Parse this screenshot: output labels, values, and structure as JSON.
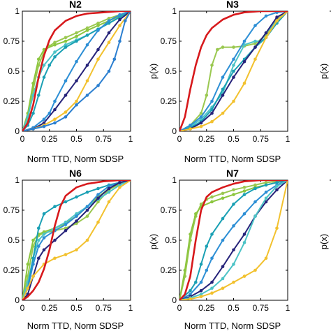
{
  "chart_data": [
    {
      "type": "line",
      "title": "N2",
      "xlabel": "Norm TTD, Norm SDSP",
      "ylabel": "",
      "xlim": [
        0,
        1
      ],
      "ylim": [
        0,
        1
      ],
      "xticks": [
        "0",
        "0.25",
        "0.5",
        "0.75",
        "1"
      ],
      "yticks": [
        "0",
        "0.25",
        "0.5",
        "0.75",
        "1"
      ],
      "grid": false,
      "series": [
        {
          "color": "#d7191c",
          "markers": false,
          "x": [
            0,
            0.05,
            0.1,
            0.15,
            0.2,
            0.25,
            0.3,
            0.4,
            0.5,
            0.6,
            0.75,
            0.9,
            1
          ],
          "y": [
            0,
            0.07,
            0.22,
            0.45,
            0.63,
            0.76,
            0.84,
            0.92,
            0.96,
            0.98,
            0.99,
            1,
            1
          ]
        },
        {
          "color": "#9ac850",
          "markers": true,
          "x": [
            0,
            0.05,
            0.1,
            0.15,
            0.2,
            0.25,
            0.3,
            0.4,
            0.5,
            0.6,
            0.7,
            0.8,
            0.9,
            1
          ],
          "y": [
            0,
            0.1,
            0.35,
            0.55,
            0.66,
            0.71,
            0.74,
            0.78,
            0.82,
            0.86,
            0.9,
            0.94,
            0.97,
            1
          ]
        },
        {
          "color": "#8cc63f",
          "markers": true,
          "x": [
            0,
            0.05,
            0.1,
            0.15,
            0.2,
            0.3,
            0.4,
            0.5,
            0.6,
            0.7,
            0.8,
            0.9,
            1
          ],
          "y": [
            0,
            0.15,
            0.4,
            0.6,
            0.68,
            0.72,
            0.75,
            0.79,
            0.84,
            0.88,
            0.92,
            0.96,
            1
          ]
        },
        {
          "color": "#4cc3c6",
          "markers": true,
          "x": [
            0,
            0.05,
            0.1,
            0.15,
            0.2,
            0.3,
            0.4,
            0.5,
            0.6,
            0.7,
            0.8,
            0.9,
            1
          ],
          "y": [
            0,
            0.12,
            0.3,
            0.45,
            0.55,
            0.66,
            0.72,
            0.76,
            0.8,
            0.85,
            0.9,
            0.95,
            1
          ]
        },
        {
          "color": "#1aa0b4",
          "markers": true,
          "x": [
            0,
            0.05,
            0.1,
            0.15,
            0.2,
            0.25,
            0.3,
            0.4,
            0.5,
            0.6,
            0.7,
            0.8,
            0.9,
            1
          ],
          "y": [
            0,
            0.05,
            0.15,
            0.3,
            0.45,
            0.55,
            0.62,
            0.7,
            0.75,
            0.8,
            0.85,
            0.9,
            0.95,
            1
          ]
        },
        {
          "color": "#2d8fd5",
          "markers": true,
          "x": [
            0,
            0.1,
            0.2,
            0.25,
            0.3,
            0.4,
            0.5,
            0.6,
            0.7,
            0.8,
            0.9,
            1
          ],
          "y": [
            0,
            0.03,
            0.1,
            0.15,
            0.25,
            0.42,
            0.58,
            0.72,
            0.84,
            0.92,
            0.97,
            1
          ]
        },
        {
          "color": "#26237a",
          "markers": true,
          "x": [
            0,
            0.1,
            0.2,
            0.3,
            0.4,
            0.5,
            0.6,
            0.7,
            0.8,
            0.9,
            1
          ],
          "y": [
            0,
            0.02,
            0.07,
            0.18,
            0.3,
            0.42,
            0.55,
            0.68,
            0.82,
            0.93,
            1
          ]
        },
        {
          "color": "#f2c12e",
          "markers": true,
          "x": [
            0,
            0.1,
            0.2,
            0.3,
            0.4,
            0.5,
            0.6,
            0.7,
            0.8,
            0.9,
            1
          ],
          "y": [
            0,
            0.02,
            0.05,
            0.1,
            0.16,
            0.25,
            0.42,
            0.6,
            0.74,
            0.88,
            1
          ]
        },
        {
          "color": "#2b7fd0",
          "markers": true,
          "x": [
            0,
            0.1,
            0.2,
            0.3,
            0.4,
            0.5,
            0.6,
            0.7,
            0.8,
            0.85,
            0.9,
            0.95,
            1
          ],
          "y": [
            0,
            0.02,
            0.04,
            0.07,
            0.12,
            0.22,
            0.3,
            0.38,
            0.5,
            0.6,
            0.75,
            0.92,
            1
          ]
        }
      ]
    },
    {
      "type": "line",
      "title": "N3",
      "xlabel": "Norm TTD, Norm SDSP",
      "ylabel": "p(x)",
      "xlim": [
        0,
        1
      ],
      "ylim": [
        0,
        1
      ],
      "xticks": [
        "0",
        "0.25",
        "0.5",
        "0.75",
        "1"
      ],
      "yticks": [
        "0",
        "0.25",
        "0.5",
        "0.75",
        "1"
      ],
      "grid": false,
      "series": [
        {
          "color": "#d7191c",
          "markers": false,
          "x": [
            0,
            0.05,
            0.1,
            0.15,
            0.2,
            0.25,
            0.3,
            0.4,
            0.5,
            0.6,
            0.75,
            0.9,
            1
          ],
          "y": [
            0,
            0.12,
            0.35,
            0.55,
            0.7,
            0.8,
            0.86,
            0.93,
            0.97,
            0.99,
            1,
            1,
            1
          ]
        },
        {
          "color": "#9ac850",
          "markers": true,
          "x": [
            0,
            0.1,
            0.2,
            0.25,
            0.3,
            0.35,
            0.4,
            0.5,
            0.6,
            0.7,
            0.8,
            0.9,
            1
          ],
          "y": [
            0,
            0.05,
            0.15,
            0.3,
            0.55,
            0.68,
            0.7,
            0.7,
            0.71,
            0.73,
            0.8,
            0.93,
            1
          ]
        },
        {
          "color": "#4cc3c6",
          "markers": true,
          "x": [
            0,
            0.1,
            0.2,
            0.3,
            0.4,
            0.5,
            0.6,
            0.7,
            0.75,
            0.8,
            0.9,
            1
          ],
          "y": [
            0,
            0.04,
            0.1,
            0.2,
            0.32,
            0.55,
            0.72,
            0.75,
            0.75,
            0.82,
            0.92,
            1
          ]
        },
        {
          "color": "#1aa0b4",
          "markers": true,
          "x": [
            0,
            0.1,
            0.2,
            0.3,
            0.4,
            0.5,
            0.6,
            0.7,
            0.8,
            0.9,
            1
          ],
          "y": [
            0,
            0.03,
            0.08,
            0.18,
            0.35,
            0.5,
            0.6,
            0.7,
            0.78,
            0.9,
            1
          ]
        },
        {
          "color": "#2d8fd5",
          "markers": true,
          "x": [
            0,
            0.1,
            0.2,
            0.3,
            0.4,
            0.5,
            0.6,
            0.7,
            0.8,
            0.9,
            1
          ],
          "y": [
            0,
            0.05,
            0.12,
            0.25,
            0.45,
            0.6,
            0.75,
            0.88,
            0.96,
            0.99,
            1
          ]
        },
        {
          "color": "#26237a",
          "markers": true,
          "x": [
            0,
            0.1,
            0.2,
            0.3,
            0.4,
            0.5,
            0.6,
            0.7,
            0.8,
            0.9,
            1
          ],
          "y": [
            0,
            0.02,
            0.07,
            0.15,
            0.3,
            0.45,
            0.58,
            0.7,
            0.82,
            0.95,
            1
          ]
        },
        {
          "color": "#f2c12e",
          "markers": true,
          "x": [
            0,
            0.1,
            0.2,
            0.3,
            0.4,
            0.5,
            0.6,
            0.7,
            0.8,
            0.9,
            1
          ],
          "y": [
            0,
            0.02,
            0.04,
            0.08,
            0.15,
            0.25,
            0.4,
            0.6,
            0.78,
            0.92,
            1
          ]
        }
      ]
    },
    {
      "type": "line",
      "title": "N6",
      "xlabel": "Norm TTD, Norm SDSP",
      "ylabel": "",
      "xlim": [
        0,
        1
      ],
      "ylim": [
        0,
        1
      ],
      "xticks": [
        "0",
        "0.25",
        "0.5",
        "0.75",
        "1"
      ],
      "yticks": [
        "0",
        "0.25",
        "0.5",
        "0.75",
        "1"
      ],
      "grid": false,
      "series": [
        {
          "color": "#d7191c",
          "markers": false,
          "x": [
            0,
            0.05,
            0.1,
            0.15,
            0.2,
            0.25,
            0.3,
            0.35,
            0.4,
            0.5,
            0.6,
            0.75,
            0.9,
            1
          ],
          "y": [
            0,
            0.03,
            0.08,
            0.15,
            0.26,
            0.42,
            0.62,
            0.78,
            0.87,
            0.94,
            0.97,
            0.99,
            1,
            1
          ]
        },
        {
          "color": "#9ac850",
          "markers": true,
          "x": [
            0,
            0.05,
            0.1,
            0.15,
            0.2,
            0.3,
            0.4,
            0.5,
            0.6,
            0.7,
            0.8,
            0.9,
            1
          ],
          "y": [
            0,
            0.2,
            0.45,
            0.54,
            0.56,
            0.58,
            0.6,
            0.64,
            0.7,
            0.82,
            0.92,
            0.97,
            1
          ]
        },
        {
          "color": "#8cc63f",
          "markers": true,
          "x": [
            0,
            0.05,
            0.1,
            0.15,
            0.2,
            0.3,
            0.4,
            0.5,
            0.6,
            0.7,
            0.8,
            0.9,
            1
          ],
          "y": [
            0,
            0.3,
            0.5,
            0.55,
            0.57,
            0.6,
            0.64,
            0.7,
            0.78,
            0.86,
            0.93,
            0.97,
            1
          ]
        },
        {
          "color": "#4cc3c6",
          "markers": true,
          "x": [
            0,
            0.05,
            0.1,
            0.15,
            0.2,
            0.3,
            0.4,
            0.5,
            0.6,
            0.7,
            0.8,
            0.9,
            1
          ],
          "y": [
            0,
            0.15,
            0.35,
            0.5,
            0.55,
            0.6,
            0.65,
            0.72,
            0.78,
            0.84,
            0.9,
            0.96,
            1
          ]
        },
        {
          "color": "#1aa0b4",
          "markers": true,
          "x": [
            0,
            0.05,
            0.1,
            0.15,
            0.2,
            0.3,
            0.4,
            0.5,
            0.6,
            0.7,
            0.8,
            0.9,
            1
          ],
          "y": [
            0,
            0.1,
            0.35,
            0.6,
            0.72,
            0.78,
            0.82,
            0.86,
            0.9,
            0.93,
            0.96,
            0.98,
            1
          ]
        },
        {
          "color": "#2d8fd5",
          "markers": true,
          "x": [
            0,
            0.05,
            0.1,
            0.15,
            0.2,
            0.3,
            0.4,
            0.5,
            0.6,
            0.7,
            0.8,
            0.9,
            1
          ],
          "y": [
            0,
            0.1,
            0.3,
            0.45,
            0.52,
            0.58,
            0.63,
            0.7,
            0.78,
            0.88,
            0.95,
            0.98,
            1
          ]
        },
        {
          "color": "#26237a",
          "markers": true,
          "x": [
            0,
            0.05,
            0.1,
            0.15,
            0.2,
            0.3,
            0.4,
            0.5,
            0.6,
            0.7,
            0.8,
            0.9,
            1
          ],
          "y": [
            0,
            0.05,
            0.2,
            0.35,
            0.42,
            0.5,
            0.58,
            0.66,
            0.75,
            0.85,
            0.93,
            0.98,
            1
          ]
        },
        {
          "color": "#f2c12e",
          "markers": true,
          "x": [
            0,
            0.05,
            0.1,
            0.2,
            0.3,
            0.4,
            0.5,
            0.6,
            0.7,
            0.8,
            0.9,
            1
          ],
          "y": [
            0,
            0.1,
            0.2,
            0.3,
            0.35,
            0.38,
            0.42,
            0.5,
            0.65,
            0.82,
            0.94,
            1
          ]
        }
      ]
    },
    {
      "type": "line",
      "title": "N7",
      "xlabel": "Norm TTD, Norm SDSP",
      "ylabel": "p(x)",
      "xlim": [
        0,
        1
      ],
      "ylim": [
        0,
        1
      ],
      "xticks": [
        "0",
        "0.25",
        "0.5",
        "0.75",
        "1"
      ],
      "yticks": [
        "0",
        "0.25",
        "0.5",
        "0.75",
        "1"
      ],
      "grid": false,
      "series": [
        {
          "color": "#d7191c",
          "markers": false,
          "x": [
            0,
            0.05,
            0.1,
            0.15,
            0.2,
            0.25,
            0.3,
            0.4,
            0.5,
            0.6,
            0.75,
            0.9,
            1
          ],
          "y": [
            0,
            0.05,
            0.2,
            0.5,
            0.75,
            0.86,
            0.9,
            0.94,
            0.97,
            0.99,
            1,
            1,
            1
          ]
        },
        {
          "color": "#9ac850",
          "markers": true,
          "x": [
            0,
            0.05,
            0.1,
            0.15,
            0.2,
            0.25,
            0.3,
            0.4,
            0.5,
            0.6,
            0.7,
            0.8,
            0.9,
            1
          ],
          "y": [
            0,
            0.2,
            0.5,
            0.7,
            0.8,
            0.84,
            0.86,
            0.89,
            0.92,
            0.94,
            0.96,
            0.98,
            0.99,
            1
          ]
        },
        {
          "color": "#8cc63f",
          "markers": true,
          "x": [
            0,
            0.05,
            0.1,
            0.15,
            0.2,
            0.3,
            0.4,
            0.5,
            0.6,
            0.7,
            0.8,
            0.9,
            1
          ],
          "y": [
            0,
            0.25,
            0.55,
            0.72,
            0.78,
            0.82,
            0.85,
            0.88,
            0.91,
            0.94,
            0.96,
            0.98,
            1
          ]
        },
        {
          "color": "#1aa0b4",
          "markers": true,
          "x": [
            0,
            0.1,
            0.15,
            0.2,
            0.25,
            0.3,
            0.4,
            0.5,
            0.6,
            0.7,
            0.8,
            0.9,
            1
          ],
          "y": [
            0,
            0.08,
            0.15,
            0.3,
            0.45,
            0.55,
            0.68,
            0.8,
            0.88,
            0.93,
            0.96,
            0.98,
            1
          ]
        },
        {
          "color": "#2d8fd5",
          "markers": true,
          "x": [
            0,
            0.1,
            0.2,
            0.25,
            0.3,
            0.4,
            0.5,
            0.6,
            0.7,
            0.8,
            0.9,
            1
          ],
          "y": [
            0,
            0.05,
            0.15,
            0.25,
            0.35,
            0.5,
            0.62,
            0.72,
            0.82,
            0.9,
            0.96,
            1
          ]
        },
        {
          "color": "#26237a",
          "markers": true,
          "x": [
            0,
            0.1,
            0.2,
            0.3,
            0.4,
            0.5,
            0.6,
            0.7,
            0.8,
            0.9,
            1
          ],
          "y": [
            0,
            0.03,
            0.08,
            0.15,
            0.28,
            0.42,
            0.55,
            0.7,
            0.82,
            0.92,
            1
          ]
        },
        {
          "color": "#4cc3c6",
          "markers": true,
          "x": [
            0,
            0.1,
            0.2,
            0.3,
            0.4,
            0.5,
            0.6,
            0.7,
            0.8,
            0.9,
            1
          ],
          "y": [
            0,
            0.02,
            0.05,
            0.1,
            0.18,
            0.3,
            0.48,
            0.7,
            0.85,
            0.95,
            1
          ]
        },
        {
          "color": "#f2c12e",
          "markers": true,
          "x": [
            0,
            0.1,
            0.2,
            0.3,
            0.4,
            0.5,
            0.6,
            0.7,
            0.8,
            0.9,
            1
          ],
          "y": [
            0,
            0.01,
            0.03,
            0.06,
            0.1,
            0.15,
            0.2,
            0.25,
            0.35,
            0.6,
            1
          ]
        }
      ]
    }
  ],
  "clipped_labels": {
    "top_right": "p(x)",
    "bottom_right": "p(x)"
  }
}
